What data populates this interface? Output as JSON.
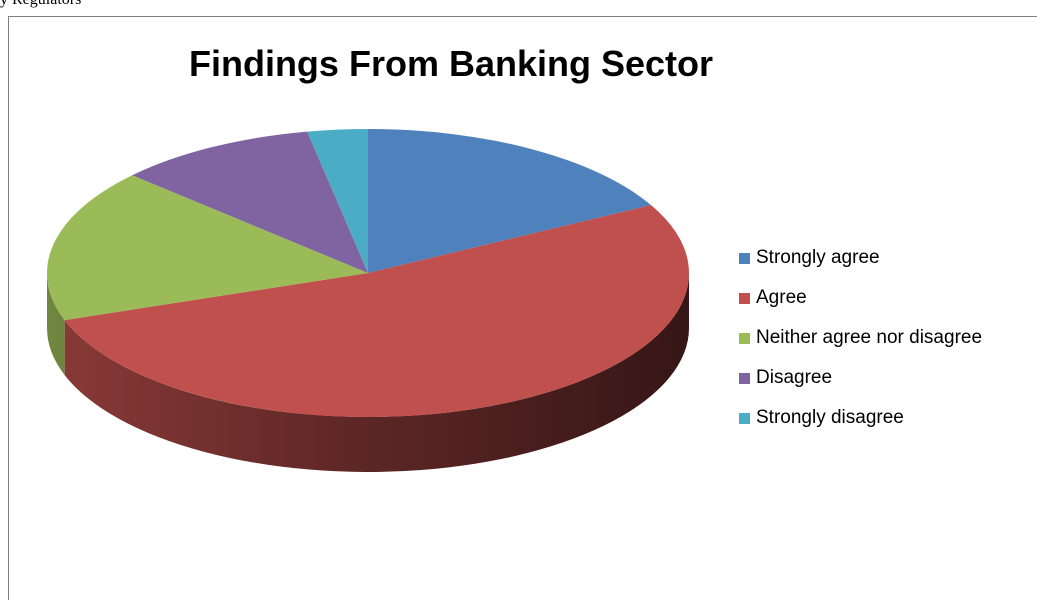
{
  "page": {
    "top_fragment": "y Regulators"
  },
  "chart_data": {
    "type": "pie",
    "three_d": true,
    "title": "Findings From Banking Sector",
    "legend_position": "right",
    "slices": [
      {
        "label": "Strongly agree",
        "value": 17,
        "color": "#4f81bd"
      },
      {
        "label": "Agree",
        "value": 52,
        "color": "#c0504d"
      },
      {
        "label": "Neither agree nor disagree",
        "value": 17,
        "color": "#9bbb59"
      },
      {
        "label": "Disagree",
        "value": 10,
        "color": "#8064a2"
      },
      {
        "label": "Strongly disagree",
        "value": 3,
        "color": "#4bacc6"
      }
    ]
  }
}
